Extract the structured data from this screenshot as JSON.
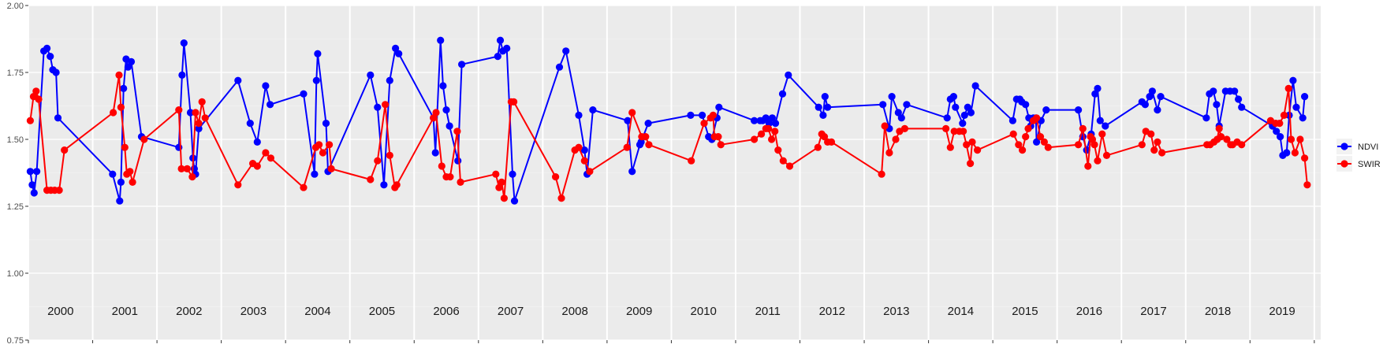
{
  "chart_data": {
    "type": "line",
    "ylim": [
      0.75,
      2.0
    ],
    "y_ticks": [
      "0.75",
      "1.00",
      "1.25",
      "1.50",
      "1.75",
      "2.00"
    ],
    "x_range": [
      1999.5,
      2019.6
    ],
    "years": [
      "2000",
      "2001",
      "2002",
      "2003",
      "2004",
      "2005",
      "2006",
      "2007",
      "2008",
      "2009",
      "2010",
      "2011",
      "2012",
      "2013",
      "2014",
      "2015",
      "2016",
      "2017",
      "2018",
      "2019"
    ],
    "grid": true,
    "legend_position": "right",
    "series": [
      {
        "name": "NDVI",
        "color": "#0000ff",
        "points": [
          [
            1999.53,
            1.38
          ],
          [
            1999.56,
            1.33
          ],
          [
            1999.59,
            1.3
          ],
          [
            1999.63,
            1.38
          ],
          [
            1999.74,
            1.83
          ],
          [
            1999.79,
            1.84
          ],
          [
            1999.84,
            1.81
          ],
          [
            1999.88,
            1.76
          ],
          [
            1999.93,
            1.75
          ],
          [
            1999.96,
            1.58
          ],
          [
            2000.81,
            1.37
          ],
          [
            2000.92,
            1.27
          ],
          [
            2000.94,
            1.34
          ],
          [
            2000.98,
            1.69
          ],
          [
            2001.02,
            1.8
          ],
          [
            2001.05,
            1.77
          ],
          [
            2001.1,
            1.79
          ],
          [
            2001.26,
            1.51
          ],
          [
            2001.84,
            1.47
          ],
          [
            2001.89,
            1.74
          ],
          [
            2001.92,
            1.86
          ],
          [
            2002.02,
            1.6
          ],
          [
            2002.06,
            1.43
          ],
          [
            2002.08,
            1.39
          ],
          [
            2002.1,
            1.37
          ],
          [
            2002.15,
            1.54
          ],
          [
            2002.76,
            1.72
          ],
          [
            2002.95,
            1.56
          ],
          [
            2003.06,
            1.49
          ],
          [
            2003.19,
            1.7
          ],
          [
            2003.26,
            1.63
          ],
          [
            2003.78,
            1.67
          ],
          [
            2003.95,
            1.37
          ],
          [
            2003.98,
            1.72
          ],
          [
            2004.0,
            1.82
          ],
          [
            2004.13,
            1.56
          ],
          [
            2004.16,
            1.38
          ],
          [
            2004.82,
            1.74
          ],
          [
            2004.93,
            1.62
          ],
          [
            2005.03,
            1.33
          ],
          [
            2005.12,
            1.72
          ],
          [
            2005.21,
            1.84
          ],
          [
            2005.26,
            1.82
          ],
          [
            2005.8,
            1.58
          ],
          [
            2005.83,
            1.45
          ],
          [
            2005.91,
            1.87
          ],
          [
            2005.95,
            1.7
          ],
          [
            2006.0,
            1.61
          ],
          [
            2006.05,
            1.55
          ],
          [
            2006.18,
            1.42
          ],
          [
            2006.24,
            1.78
          ],
          [
            2006.8,
            1.81
          ],
          [
            2006.84,
            1.87
          ],
          [
            2006.88,
            1.83
          ],
          [
            2006.94,
            1.84
          ],
          [
            2007.03,
            1.37
          ],
          [
            2007.06,
            1.27
          ],
          [
            2007.76,
            1.77
          ],
          [
            2007.86,
            1.83
          ],
          [
            2008.06,
            1.59
          ],
          [
            2008.15,
            1.46
          ],
          [
            2008.19,
            1.37
          ],
          [
            2008.28,
            1.61
          ],
          [
            2008.82,
            1.57
          ],
          [
            2008.89,
            1.38
          ],
          [
            2009.01,
            1.48
          ],
          [
            2009.03,
            1.49
          ],
          [
            2009.14,
            1.56
          ],
          [
            2009.8,
            1.59
          ],
          [
            2009.98,
            1.59
          ],
          [
            2010.08,
            1.51
          ],
          [
            2010.13,
            1.5
          ],
          [
            2010.21,
            1.58
          ],
          [
            2010.24,
            1.62
          ],
          [
            2010.79,
            1.57
          ],
          [
            2010.88,
            1.57
          ],
          [
            2010.92,
            1.57
          ],
          [
            2010.97,
            1.58
          ],
          [
            2011.02,
            1.56
          ],
          [
            2011.07,
            1.58
          ],
          [
            2011.12,
            1.56
          ],
          [
            2011.23,
            1.67
          ],
          [
            2011.32,
            1.74
          ],
          [
            2011.79,
            1.62
          ],
          [
            2011.86,
            1.59
          ],
          [
            2011.89,
            1.66
          ],
          [
            2011.93,
            1.62
          ],
          [
            2012.79,
            1.63
          ],
          [
            2012.89,
            1.54
          ],
          [
            2012.93,
            1.66
          ],
          [
            2013.03,
            1.6
          ],
          [
            2013.08,
            1.58
          ],
          [
            2013.16,
            1.63
          ],
          [
            2013.79,
            1.58
          ],
          [
            2013.84,
            1.65
          ],
          [
            2013.89,
            1.66
          ],
          [
            2013.92,
            1.62
          ],
          [
            2014.03,
            1.56
          ],
          [
            2014.06,
            1.59
          ],
          [
            2014.11,
            1.62
          ],
          [
            2014.16,
            1.6
          ],
          [
            2014.23,
            1.7
          ],
          [
            2014.81,
            1.57
          ],
          [
            2014.87,
            1.65
          ],
          [
            2014.92,
            1.65
          ],
          [
            2014.95,
            1.64
          ],
          [
            2015.01,
            1.63
          ],
          [
            2015.06,
            1.58
          ],
          [
            2015.09,
            1.55
          ],
          [
            2015.13,
            1.58
          ],
          [
            2015.17,
            1.58
          ],
          [
            2015.18,
            1.49
          ],
          [
            2015.25,
            1.57
          ],
          [
            2015.33,
            1.61
          ],
          [
            2015.83,
            1.61
          ],
          [
            2015.9,
            1.51
          ],
          [
            2015.96,
            1.46
          ],
          [
            2016.03,
            1.52
          ],
          [
            2016.09,
            1.67
          ],
          [
            2016.13,
            1.69
          ],
          [
            2016.17,
            1.57
          ],
          [
            2016.25,
            1.55
          ],
          [
            2016.82,
            1.64
          ],
          [
            2016.87,
            1.63
          ],
          [
            2016.94,
            1.66
          ],
          [
            2016.98,
            1.68
          ],
          [
            2017.06,
            1.61
          ],
          [
            2017.11,
            1.66
          ],
          [
            2017.82,
            1.58
          ],
          [
            2017.87,
            1.67
          ],
          [
            2017.93,
            1.68
          ],
          [
            2017.98,
            1.63
          ],
          [
            2018.02,
            1.55
          ],
          [
            2018.12,
            1.68
          ],
          [
            2018.19,
            1.68
          ],
          [
            2018.26,
            1.68
          ],
          [
            2018.32,
            1.65
          ],
          [
            2018.37,
            1.62
          ],
          [
            2018.85,
            1.55
          ],
          [
            2018.91,
            1.53
          ],
          [
            2018.97,
            1.51
          ],
          [
            2019.01,
            1.44
          ],
          [
            2019.07,
            1.45
          ],
          [
            2019.11,
            1.59
          ],
          [
            2019.17,
            1.72
          ],
          [
            2019.22,
            1.62
          ],
          [
            2019.32,
            1.58
          ],
          [
            2019.35,
            1.66
          ]
        ]
      },
      {
        "name": "SWIR",
        "color": "#ff0000",
        "points": [
          [
            1999.53,
            1.57
          ],
          [
            1999.58,
            1.66
          ],
          [
            1999.62,
            1.68
          ],
          [
            1999.66,
            1.65
          ],
          [
            1999.79,
            1.31
          ],
          [
            1999.85,
            1.31
          ],
          [
            1999.91,
            1.31
          ],
          [
            1999.98,
            1.31
          ],
          [
            2000.06,
            1.46
          ],
          [
            2000.82,
            1.6
          ],
          [
            2000.91,
            1.74
          ],
          [
            2000.94,
            1.62
          ],
          [
            2001.0,
            1.47
          ],
          [
            2001.03,
            1.37
          ],
          [
            2001.08,
            1.38
          ],
          [
            2001.12,
            1.34
          ],
          [
            2001.3,
            1.5
          ],
          [
            2001.84,
            1.61
          ],
          [
            2001.88,
            1.39
          ],
          [
            2001.97,
            1.39
          ],
          [
            2002.05,
            1.36
          ],
          [
            2002.1,
            1.6
          ],
          [
            2002.15,
            1.56
          ],
          [
            2002.2,
            1.64
          ],
          [
            2002.25,
            1.58
          ],
          [
            2002.76,
            1.33
          ],
          [
            2002.99,
            1.41
          ],
          [
            2003.06,
            1.4
          ],
          [
            2003.19,
            1.45
          ],
          [
            2003.27,
            1.43
          ],
          [
            2003.78,
            1.32
          ],
          [
            2003.97,
            1.47
          ],
          [
            2004.02,
            1.48
          ],
          [
            2004.08,
            1.45
          ],
          [
            2004.18,
            1.48
          ],
          [
            2004.21,
            1.39
          ],
          [
            2004.82,
            1.35
          ],
          [
            2004.93,
            1.42
          ],
          [
            2005.05,
            1.63
          ],
          [
            2005.12,
            1.44
          ],
          [
            2005.2,
            1.32
          ],
          [
            2005.23,
            1.33
          ],
          [
            2005.8,
            1.58
          ],
          [
            2005.84,
            1.6
          ],
          [
            2005.93,
            1.4
          ],
          [
            2006.0,
            1.36
          ],
          [
            2006.06,
            1.36
          ],
          [
            2006.17,
            1.53
          ],
          [
            2006.22,
            1.34
          ],
          [
            2006.77,
            1.37
          ],
          [
            2006.82,
            1.32
          ],
          [
            2006.86,
            1.34
          ],
          [
            2006.9,
            1.28
          ],
          [
            2007.01,
            1.64
          ],
          [
            2007.05,
            1.64
          ],
          [
            2007.7,
            1.36
          ],
          [
            2007.79,
            1.28
          ],
          [
            2008.0,
            1.46
          ],
          [
            2008.06,
            1.47
          ],
          [
            2008.15,
            1.42
          ],
          [
            2008.23,
            1.38
          ],
          [
            2008.81,
            1.47
          ],
          [
            2008.89,
            1.6
          ],
          [
            2009.04,
            1.51
          ],
          [
            2009.1,
            1.51
          ],
          [
            2009.15,
            1.48
          ],
          [
            2009.81,
            1.42
          ],
          [
            2010.01,
            1.56
          ],
          [
            2010.11,
            1.58
          ],
          [
            2010.15,
            1.59
          ],
          [
            2010.17,
            1.51
          ],
          [
            2010.23,
            1.51
          ],
          [
            2010.27,
            1.48
          ],
          [
            2010.79,
            1.5
          ],
          [
            2010.9,
            1.52
          ],
          [
            2010.97,
            1.54
          ],
          [
            2011.01,
            1.54
          ],
          [
            2011.06,
            1.5
          ],
          [
            2011.11,
            1.53
          ],
          [
            2011.16,
            1.46
          ],
          [
            2011.24,
            1.42
          ],
          [
            2011.34,
            1.4
          ],
          [
            2011.78,
            1.47
          ],
          [
            2011.84,
            1.52
          ],
          [
            2011.88,
            1.51
          ],
          [
            2011.93,
            1.49
          ],
          [
            2011.99,
            1.49
          ],
          [
            2012.77,
            1.37
          ],
          [
            2012.82,
            1.55
          ],
          [
            2012.89,
            1.45
          ],
          [
            2012.99,
            1.5
          ],
          [
            2013.05,
            1.53
          ],
          [
            2013.13,
            1.54
          ],
          [
            2013.77,
            1.54
          ],
          [
            2013.84,
            1.47
          ],
          [
            2013.9,
            1.53
          ],
          [
            2013.98,
            1.53
          ],
          [
            2014.04,
            1.53
          ],
          [
            2014.09,
            1.48
          ],
          [
            2014.15,
            1.41
          ],
          [
            2014.18,
            1.49
          ],
          [
            2014.26,
            1.46
          ],
          [
            2014.82,
            1.52
          ],
          [
            2014.9,
            1.48
          ],
          [
            2014.96,
            1.46
          ],
          [
            2015.01,
            1.51
          ],
          [
            2015.05,
            1.54
          ],
          [
            2015.13,
            1.57
          ],
          [
            2015.18,
            1.58
          ],
          [
            2015.24,
            1.51
          ],
          [
            2015.3,
            1.49
          ],
          [
            2015.36,
            1.47
          ],
          [
            2015.83,
            1.48
          ],
          [
            2015.9,
            1.54
          ],
          [
            2015.98,
            1.4
          ],
          [
            2016.02,
            1.51
          ],
          [
            2016.05,
            1.5
          ],
          [
            2016.08,
            1.48
          ],
          [
            2016.13,
            1.42
          ],
          [
            2016.2,
            1.52
          ],
          [
            2016.27,
            1.44
          ],
          [
            2016.82,
            1.48
          ],
          [
            2016.88,
            1.53
          ],
          [
            2016.96,
            1.52
          ],
          [
            2017.01,
            1.46
          ],
          [
            2017.06,
            1.49
          ],
          [
            2017.13,
            1.45
          ],
          [
            2017.83,
            1.48
          ],
          [
            2017.88,
            1.48
          ],
          [
            2017.94,
            1.49
          ],
          [
            2017.99,
            1.5
          ],
          [
            2018.02,
            1.54
          ],
          [
            2018.05,
            1.51
          ],
          [
            2018.14,
            1.5
          ],
          [
            2018.2,
            1.48
          ],
          [
            2018.23,
            1.48
          ],
          [
            2018.3,
            1.49
          ],
          [
            2018.37,
            1.48
          ],
          [
            2018.82,
            1.57
          ],
          [
            2018.9,
            1.56
          ],
          [
            2018.96,
            1.56
          ],
          [
            2019.03,
            1.59
          ],
          [
            2019.1,
            1.69
          ],
          [
            2019.14,
            1.5
          ],
          [
            2019.2,
            1.45
          ],
          [
            2019.28,
            1.5
          ],
          [
            2019.35,
            1.43
          ],
          [
            2019.39,
            1.33
          ]
        ]
      }
    ]
  }
}
